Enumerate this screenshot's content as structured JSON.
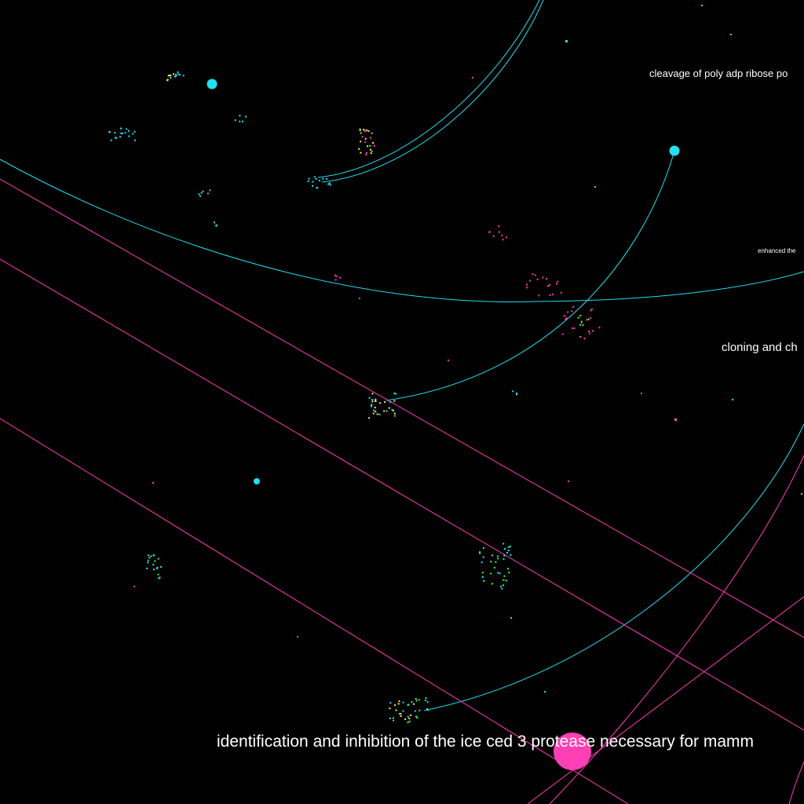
{
  "labels": {
    "cleavage": "cleavage of poly adp ribose po",
    "enhanced": "enhanced the",
    "cloning": "cloning and ch",
    "identification": "identification and inhibition of the ice ced 3 protease necessary for mamm"
  },
  "colors": {
    "background": "#000000",
    "cyan": "#22e0f0",
    "magenta": "#ff3fb4",
    "green": "#44ff44",
    "yellow": "#ffee44",
    "label": "#ffffff"
  }
}
